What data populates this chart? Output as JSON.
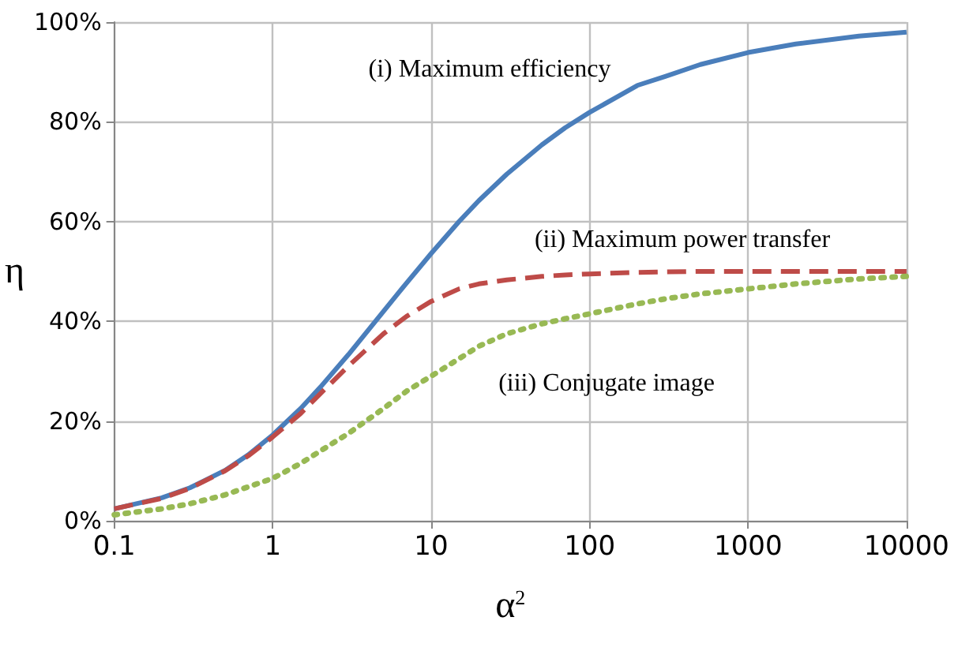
{
  "chart_data": {
    "type": "line",
    "xlabel": "α$^{2}$",
    "ylabel": "η",
    "log": "x",
    "grid": true,
    "marker": "none",
    "x": [
      0.1,
      0.2,
      0.3,
      0.5,
      0.7,
      1,
      1.5,
      2,
      3,
      5,
      7,
      10,
      15,
      20,
      30,
      50,
      70,
      100,
      200,
      300,
      500,
      1000,
      2000,
      5000,
      10000
    ],
    "xlim": [
      0.1,
      10000
    ],
    "xticks": [
      0.1,
      1,
      10,
      100,
      1000,
      10000
    ],
    "ylim": [
      0,
      100
    ],
    "yticks": [
      {
        "value": 0,
        "label": "0%"
      },
      {
        "value": 20,
        "label": "20%"
      },
      {
        "value": 40,
        "label": "40%"
      },
      {
        "value": 60,
        "label": "60%"
      },
      {
        "value": 80,
        "label": "80%"
      },
      {
        "value": 100,
        "label": "100%"
      }
    ],
    "series": [
      {
        "color": "#4a7ebb",
        "line_style": "solid",
        "values": [
          2.4,
          4.6,
          6.6,
          10.1,
          13.2,
          17.2,
          22.5,
          26.8,
          33.3,
          42,
          47.7,
          53.6,
          60,
          64.2,
          69.5,
          75.4,
          78.8,
          81.9,
          87.3,
          89.1,
          91.5,
          93.9,
          95.6,
          97.2,
          98
        ]
      },
      {
        "color": "#be4b48",
        "line_style": "dashed",
        "values": [
          2.4,
          4.5,
          6.5,
          10,
          13,
          16.8,
          21.5,
          25.5,
          31,
          37.5,
          41,
          44,
          46.5,
          47.5,
          48.3,
          49,
          49.3,
          49.5,
          49.8,
          49.9,
          50,
          50,
          50,
          50,
          50
        ]
      },
      {
        "color": "#98b954",
        "line_style": "dotted",
        "values": [
          1.2,
          2.4,
          3.4,
          5.2,
          6.8,
          8.5,
          11.5,
          14,
          17.5,
          22.5,
          26,
          29,
          32.5,
          35,
          37.5,
          39.5,
          40.5,
          41.5,
          43.5,
          44.5,
          45.5,
          46.5,
          47.5,
          48.5,
          49
        ]
      }
    ],
    "annotations": [
      "(i) Maximum efficiency",
      "(ii) Maximum power transfer",
      "(iii) Conjugate image"
    ]
  }
}
